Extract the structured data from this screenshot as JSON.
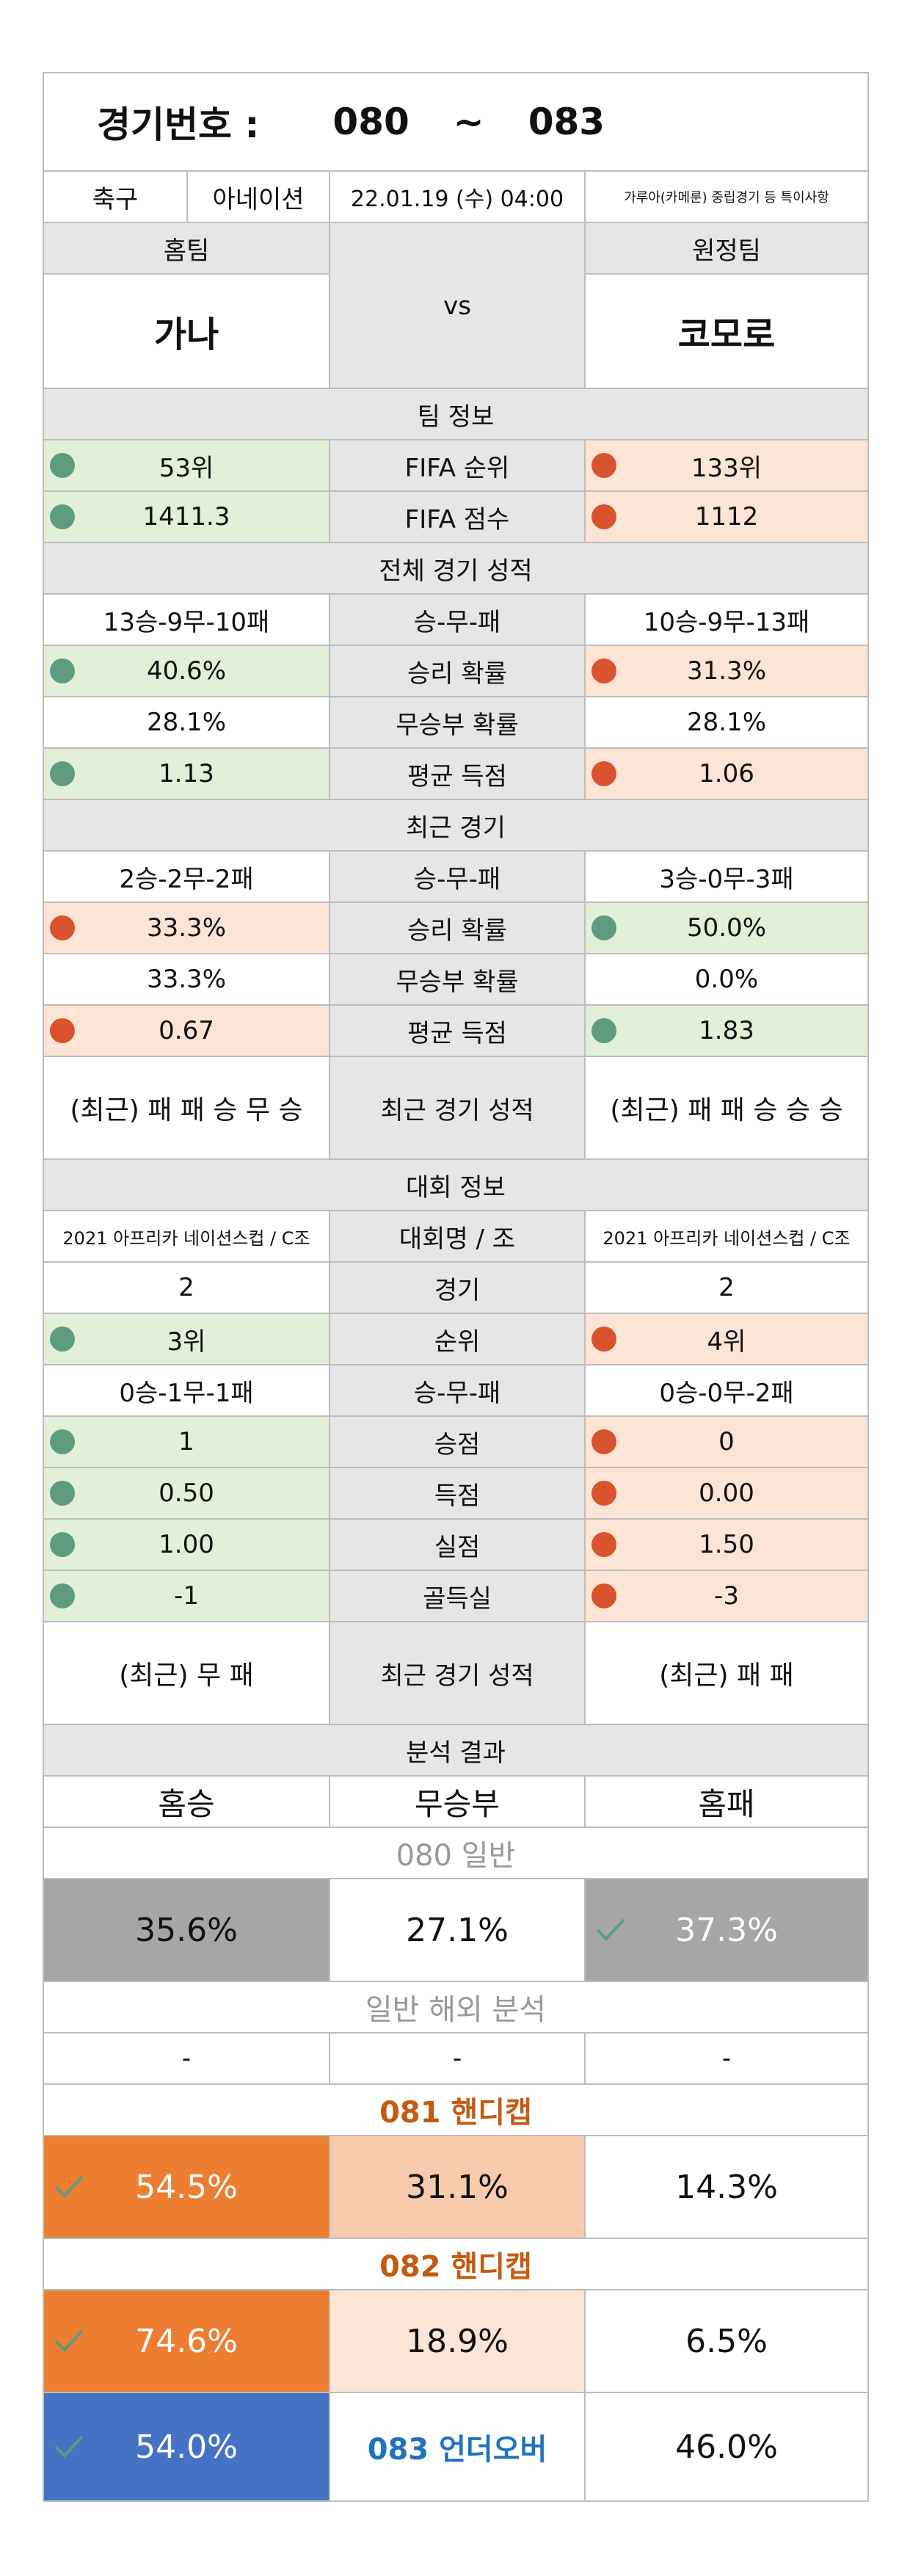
{
  "header": {
    "label": "경기번호 :",
    "from": "080",
    "tilde": "~",
    "to": "083"
  },
  "info": {
    "sport": "축구",
    "league_short": "아네이션",
    "datetime": "22.01.19 (수) 04:00",
    "note": "가루아(카메룬) 중립경기 등 특이사항"
  },
  "teams": {
    "home_label": "홈팀",
    "away_label": "원정팀",
    "home": "가나",
    "vs": "vs",
    "away": "코모로"
  },
  "team_info": {
    "title": "팀 정보",
    "rows": [
      {
        "home": "53위",
        "label": "FIFA 순위",
        "away": "133위"
      },
      {
        "home": "1411.3",
        "label": "FIFA 점수",
        "away": "1112"
      }
    ]
  },
  "overall": {
    "title": "전체 경기 성적",
    "record": {
      "home": "13승-9무-10패",
      "label": "승-무-패",
      "away": "10승-9무-13패"
    },
    "win": {
      "home": "40.6%",
      "label": "승리 확률",
      "away": "31.3%"
    },
    "draw": {
      "home": "28.1%",
      "label": "무승부 확률",
      "away": "28.1%"
    },
    "goals": {
      "home": "1.13",
      "label": "평균 득점",
      "away": "1.06"
    }
  },
  "recent": {
    "title": "최근 경기",
    "record": {
      "home": "2승-2무-2패",
      "label": "승-무-패",
      "away": "3승-0무-3패"
    },
    "win": {
      "home": "33.3%",
      "label": "승리 확률",
      "away": "50.0%"
    },
    "draw": {
      "home": "33.3%",
      "label": "무승부 확률",
      "away": "0.0%"
    },
    "goals": {
      "home": "0.67",
      "label": "평균 득점",
      "away": "1.83"
    },
    "form": {
      "home": "(최근) 패 패 승 무 승",
      "label": "최근 경기 성적",
      "away": "(최근) 패 패 승 승 승"
    }
  },
  "tournament": {
    "title": "대회 정보",
    "name": {
      "home": "2021 아프리카 네이션스컵 / C조",
      "label": "대회명 / 조",
      "away": "2021 아프리카 네이션스컵 / C조"
    },
    "games": {
      "home": "2",
      "label": "경기",
      "away": "2"
    },
    "rank": {
      "home": "3위",
      "label": "순위",
      "away": "4위"
    },
    "record": {
      "home": "0승-1무-1패",
      "label": "승-무-패",
      "away": "0승-0무-2패"
    },
    "points": {
      "home": "1",
      "label": "승점",
      "away": "0"
    },
    "scored": {
      "home": "0.50",
      "label": "득점",
      "away": "0.00"
    },
    "conceded": {
      "home": "1.00",
      "label": "실점",
      "away": "1.50"
    },
    "diff": {
      "home": "-1",
      "label": "골득실",
      "away": "-3"
    },
    "form": {
      "home": "(최근) 무 패",
      "label": "최근 경기 성적",
      "away": "(최근) 패 패"
    }
  },
  "analysis": {
    "title": "분석 결과",
    "cols": {
      "home": "홈승",
      "draw": "무승부",
      "away": "홈패"
    },
    "g080": {
      "title": "080 일반",
      "home": "35.6%",
      "draw": "27.1%",
      "away": "37.3%"
    },
    "overseas": {
      "title": "일반 해외 분석",
      "home": "-",
      "draw": "-",
      "away": "-"
    },
    "g081": {
      "title": "081 핸디캡",
      "home": "54.5%",
      "draw": "31.1%",
      "away": "14.3%"
    },
    "g082": {
      "title": "082 핸디캡",
      "home": "74.6%",
      "draw": "18.9%",
      "away": "6.5%"
    },
    "g083": {
      "home": "54.0%",
      "label": "083 언더오버",
      "away": "46.0%"
    }
  },
  "colors": {
    "good": "#5d9c7e",
    "bad": "#d9532e",
    "orange": "#ed7d31",
    "blue": "#4472c4",
    "gray": "#a6a6a6"
  }
}
